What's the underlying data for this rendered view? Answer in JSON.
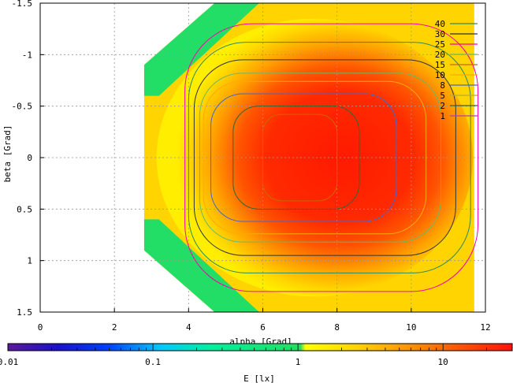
{
  "chart_data": {
    "type": "heatmap",
    "title": "",
    "xlabel": "alpha [Grad]",
    "ylabel": "beta [Grad]",
    "xlim": [
      0,
      12
    ],
    "ylim": [
      -1.5,
      1.5
    ],
    "y_axis_inverted": true,
    "x_ticks": [
      0,
      2,
      4,
      6,
      8,
      10,
      12
    ],
    "y_ticks": [
      -1.5,
      -1,
      -0.5,
      0,
      0.5,
      1,
      1.5
    ],
    "x_tick_labels": [
      "0",
      "2",
      "4",
      "6",
      "8",
      "10",
      "12"
    ],
    "y_tick_labels": [
      "-1.5",
      "-1",
      "-0.5",
      "0",
      "0.5",
      "1",
      "1.5"
    ],
    "grid": true,
    "colorbar": {
      "label": "E [lx]",
      "scale": "log",
      "range": [
        0.01,
        30
      ],
      "tick_labels": [
        "0.01",
        "0.1",
        "1",
        "10"
      ],
      "tick_values": [
        0.01,
        0.1,
        1,
        10
      ]
    },
    "legend_position": "top-right",
    "contour_levels": [
      {
        "label": "40",
        "color": "#2e8b57"
      },
      {
        "label": "30",
        "color": "#333333"
      },
      {
        "label": "25",
        "color": "#ff00aa"
      },
      {
        "label": "20",
        "color": "#66bb66"
      },
      {
        "label": "15",
        "color": "#cc6600"
      },
      {
        "label": "10",
        "color": "#ffaa00"
      },
      {
        "label": "8",
        "color": "#4466cc"
      },
      {
        "label": "5",
        "color": "#bbaa33"
      },
      {
        "label": "2",
        "color": "#336633"
      },
      {
        "label": "1",
        "color": "#aa44aa"
      }
    ],
    "data_region": {
      "alpha_min": 2.8,
      "alpha_max": 11.7,
      "beta_min": -1.5,
      "beta_max": 1.5
    },
    "peak": {
      "alpha": 7.0,
      "beta": 0.0
    }
  }
}
